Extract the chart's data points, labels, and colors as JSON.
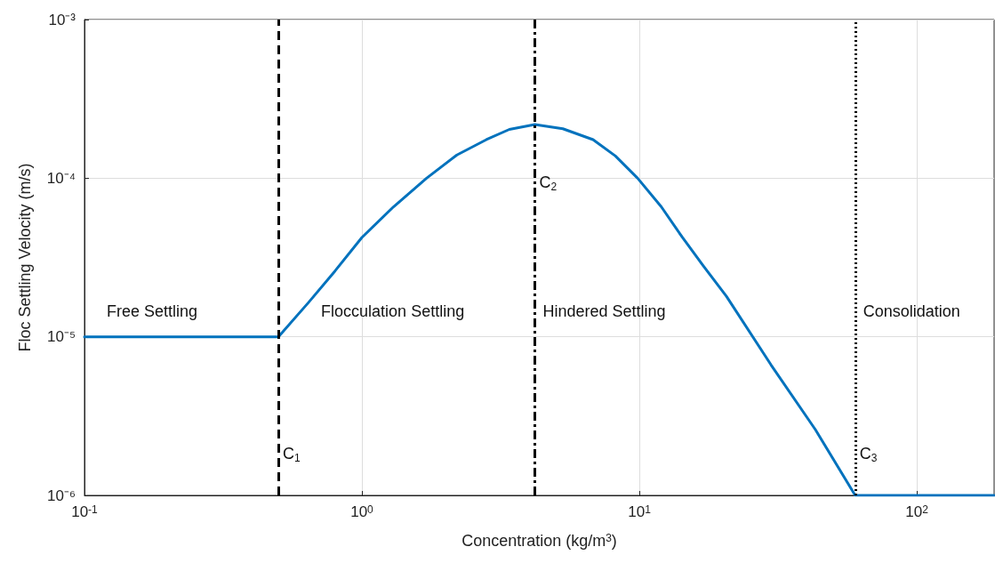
{
  "chart_data": {
    "type": "line",
    "xlabel": "Concentration (kg/m$^{3}$)",
    "ylabel": "Floc Settling Velocity (m/s)",
    "series": [
      {
        "color": "#0072bd",
        "x": [
          0.1,
          0.5,
          0.643,
          0.8,
          1.0,
          1.3,
          1.71,
          2.2,
          2.81,
          3.4,
          4.2,
          5.3,
          6.81,
          8.2,
          9.86,
          12,
          14.3,
          17,
          20.6,
          29.8,
          43.1,
          60,
          190
        ],
        "values": [
          1e-05,
          1e-05,
          1.65e-05,
          2.6e-05,
          4.23e-05,
          6.6e-05,
          0.0001,
          0.00014,
          0.000175,
          0.000203,
          0.000218,
          0.000205,
          0.000175,
          0.000138,
          0.0001,
          6.6e-05,
          4.23e-05,
          2.8e-05,
          1.8e-05,
          6.67e-06,
          2.6e-06,
          1e-06,
          1e-06
        ]
      }
    ],
    "log": "xy",
    "grid": true,
    "marker": "none",
    "line_style": "solid",
    "xlim": [
      0.1,
      190
    ],
    "ylim": [
      1e-06,
      0.001
    ],
    "xticks": [
      {
        "value": 0.1,
        "label": "10$^{-1}$"
      },
      {
        "value": 1,
        "label": "10$^{0}$"
      },
      {
        "value": 10,
        "label": "10$^{1}$"
      },
      {
        "value": 100,
        "label": "10$^{2}$"
      }
    ],
    "yticks": [
      {
        "value": 1e-06,
        "label": "10⁻⁶"
      },
      {
        "value": 1e-05,
        "label": "10⁻⁵"
      },
      {
        "value": 0.0001,
        "label": "10⁻⁴"
      },
      {
        "value": 0.001,
        "label": "10⁻³"
      }
    ],
    "ref_lines": [
      {
        "axis": "x",
        "value": 0.5,
        "color": "#000000",
        "line_style": "dashed"
      },
      {
        "axis": "x",
        "value": 4.2,
        "color": "#000000",
        "line_style": "dashdot"
      },
      {
        "axis": "x",
        "value": 60,
        "color": "#000000",
        "line_style": "dotted"
      }
    ],
    "annotations": [
      "Free Settling",
      "Flocculation Settling",
      "Hindered Settling",
      "Consolidation",
      {
        "text": "C$_{1}$",
        "x": 0.5,
        "y": 1.83e-06
      },
      {
        "text": "C$_{2}$",
        "x": 4.2,
        "y": 9.4e-05
      },
      {
        "text": "C$_{3}$",
        "x": 60,
        "y": 1.83e-06
      }
    ]
  }
}
